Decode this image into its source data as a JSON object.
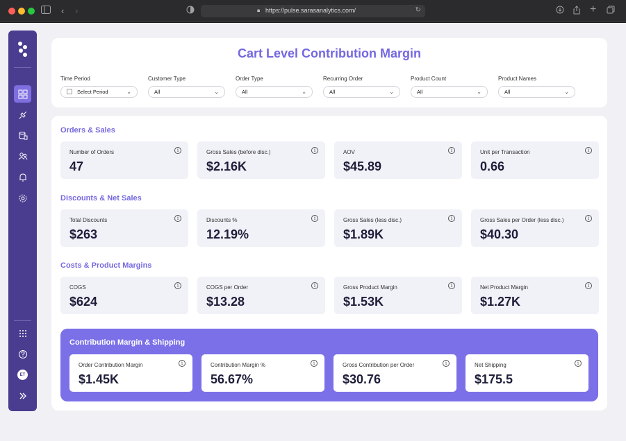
{
  "browser": {
    "url": "https://pulse.sarasanalytics.com/"
  },
  "sidebar": {
    "avatar_initials": "ET"
  },
  "header": {
    "title": "Cart Level Contribution Margin"
  },
  "filters": [
    {
      "label": "Time Period",
      "value": "Select Period"
    },
    {
      "label": "Customer Type",
      "value": "All"
    },
    {
      "label": "Order Type",
      "value": "All"
    },
    {
      "label": "Recurring Order",
      "value": "All"
    },
    {
      "label": "Product Count",
      "value": "All"
    },
    {
      "label": "Product Names",
      "value": "All"
    }
  ],
  "sections": [
    {
      "title": "Orders & Sales",
      "metrics": [
        {
          "label": "Number of Orders",
          "value": "47"
        },
        {
          "label": "Gross Sales (before disc.)",
          "value": "$2.16K"
        },
        {
          "label": "AOV",
          "value": "$45.89"
        },
        {
          "label": "Unit per Transaction",
          "value": "0.66"
        }
      ]
    },
    {
      "title": "Discounts & Net Sales",
      "metrics": [
        {
          "label": "Total Discounts",
          "value": "$263"
        },
        {
          "label": "Discounts %",
          "value": "12.19%"
        },
        {
          "label": "Gross Sales (less disc.)",
          "value": "$1.89K"
        },
        {
          "label": "Gross Sales per Order (less disc.)",
          "value": "$40.30"
        }
      ]
    },
    {
      "title": "Costs & Product Margins",
      "metrics": [
        {
          "label": "COGS",
          "value": "$624"
        },
        {
          "label": "COGS per Order",
          "value": "$13.28"
        },
        {
          "label": "Gross Product Margin",
          "value": "$1.53K"
        },
        {
          "label": "Net Product Margin",
          "value": "$1.27K"
        }
      ]
    }
  ],
  "contribution": {
    "title": "Contribution Margin & Shipping",
    "metrics": [
      {
        "label": "Order Contribution Margin",
        "value": "$1.45K"
      },
      {
        "label": "Contribution Margin %",
        "value": "56.67%"
      },
      {
        "label": "Gross Contribution per Order",
        "value": "$30.76"
      },
      {
        "label": "Net Shipping",
        "value": "$175.5"
      }
    ]
  },
  "colors": {
    "accent": "#7468e0",
    "sidebar": "#4a3d8f",
    "panel": "#7b70e8"
  },
  "info_glyph": "i"
}
